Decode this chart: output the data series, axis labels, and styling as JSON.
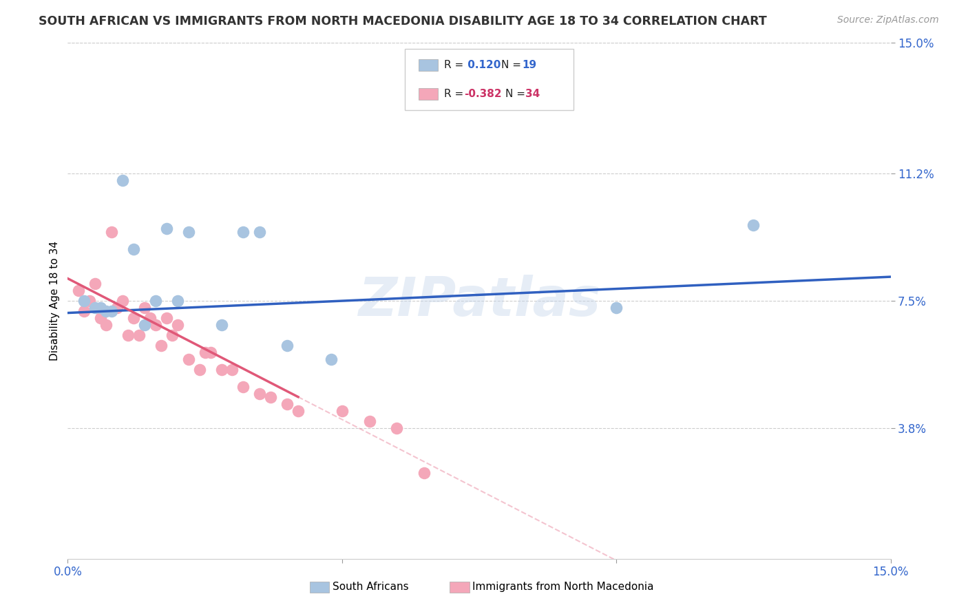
{
  "title": "SOUTH AFRICAN VS IMMIGRANTS FROM NORTH MACEDONIA DISABILITY AGE 18 TO 34 CORRELATION CHART",
  "source": "Source: ZipAtlas.com",
  "ylabel": "Disability Age 18 to 34",
  "x_min": 0.0,
  "x_max": 0.15,
  "y_min": 0.0,
  "y_max": 0.15,
  "x_ticks": [
    0.0,
    0.05,
    0.1,
    0.15
  ],
  "x_tick_labels": [
    "0.0%",
    "",
    "",
    "15.0%"
  ],
  "y_tick_labels_right": [
    "15.0%",
    "11.2%",
    "7.5%",
    "3.8%"
  ],
  "y_tick_positions_right": [
    0.15,
    0.112,
    0.075,
    0.038
  ],
  "watermark": "ZIPatlas",
  "blue_color": "#a8c4e0",
  "pink_color": "#f4a7b9",
  "blue_line_color": "#3060c0",
  "pink_line_color": "#e05878",
  "south_africans_x": [
    0.003,
    0.005,
    0.006,
    0.007,
    0.008,
    0.01,
    0.012,
    0.014,
    0.016,
    0.018,
    0.02,
    0.022,
    0.028,
    0.032,
    0.035,
    0.04,
    0.048,
    0.1,
    0.125
  ],
  "south_africans_y": [
    0.075,
    0.073,
    0.073,
    0.072,
    0.072,
    0.11,
    0.09,
    0.068,
    0.075,
    0.096,
    0.075,
    0.095,
    0.068,
    0.095,
    0.095,
    0.062,
    0.058,
    0.073,
    0.097
  ],
  "north_macedonia_x": [
    0.002,
    0.003,
    0.004,
    0.005,
    0.006,
    0.007,
    0.008,
    0.009,
    0.01,
    0.011,
    0.012,
    0.013,
    0.014,
    0.015,
    0.016,
    0.017,
    0.018,
    0.019,
    0.02,
    0.022,
    0.024,
    0.025,
    0.026,
    0.028,
    0.03,
    0.032,
    0.035,
    0.037,
    0.04,
    0.042,
    0.05,
    0.055,
    0.06,
    0.065
  ],
  "north_macedonia_y": [
    0.078,
    0.072,
    0.075,
    0.08,
    0.07,
    0.068,
    0.095,
    0.073,
    0.075,
    0.065,
    0.07,
    0.065,
    0.073,
    0.07,
    0.068,
    0.062,
    0.07,
    0.065,
    0.068,
    0.058,
    0.055,
    0.06,
    0.06,
    0.055,
    0.055,
    0.05,
    0.048,
    0.047,
    0.045,
    0.043,
    0.043,
    0.04,
    0.038,
    0.025
  ],
  "pink_line_x_solid_end": 0.042,
  "pink_line_intercept": 0.0815,
  "pink_line_slope": -0.82,
  "blue_line_intercept": 0.0715,
  "blue_line_slope": 0.07
}
